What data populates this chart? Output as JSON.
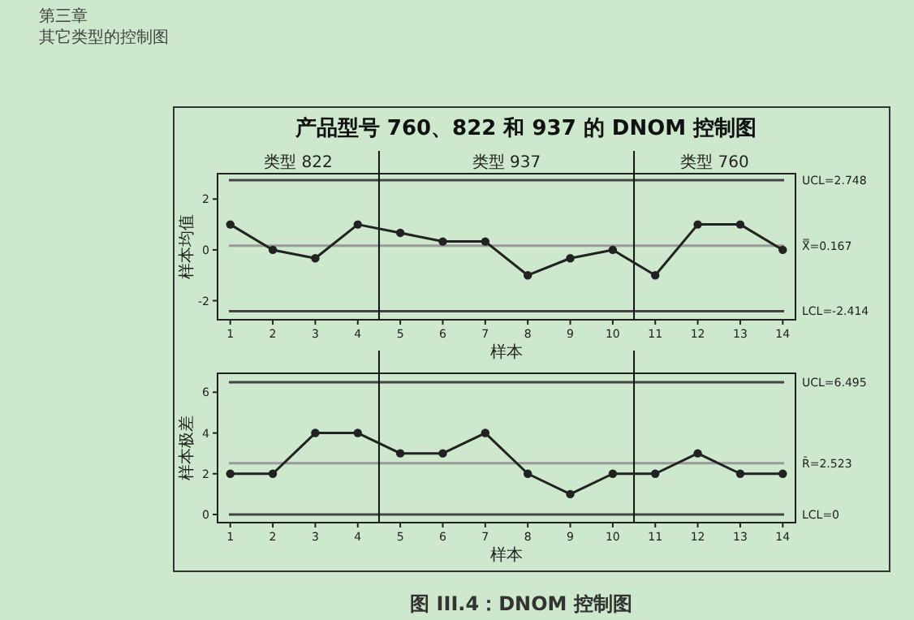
{
  "chart_data": [
    {
      "type": "line",
      "title": "产品型号 760、822 和 937 的 DNOM 控制图",
      "xlabel": "样本",
      "ylabel": "样本均值",
      "x": [
        1,
        2,
        3,
        4,
        5,
        6,
        7,
        8,
        9,
        10,
        11,
        12,
        13,
        14
      ],
      "series": [
        {
          "color": "#222222",
          "values": [
            1,
            0,
            -0.33,
            1,
            0.67,
            0.33,
            0.33,
            -1,
            -0.33,
            0,
            -1,
            1,
            1,
            0
          ]
        }
      ],
      "marker": "circle",
      "line_style": "solid",
      "grid": false,
      "xlim": [
        0.7,
        14.3
      ],
      "xticks": [
        1,
        2,
        3,
        4,
        5,
        6,
        7,
        8,
        9,
        10,
        11,
        12,
        13,
        14
      ],
      "ylim": [
        -2.75,
        3.0
      ],
      "yticks": [
        -2,
        0,
        2
      ],
      "ref_lines": [
        {
          "axis": "y",
          "value": 2.748,
          "label": "UCL=2.748",
          "color": "#444444"
        },
        {
          "axis": "y",
          "value": 0.167,
          "label": "X̿=0.167",
          "color": "#999999"
        },
        {
          "axis": "y",
          "value": -2.414,
          "label": "LCL=-2.414",
          "color": "#444444"
        },
        {
          "axis": "x",
          "value": 4.5,
          "color": "#111111"
        },
        {
          "axis": "x",
          "value": 10.5,
          "color": "#111111"
        }
      ],
      "annotations": [
        "第三章",
        "其它类型的控制图",
        "类型 822",
        "类型 937",
        "类型 760"
      ]
    },
    {
      "type": "line",
      "xlabel": "样本",
      "ylabel": "样本极差",
      "x": [
        1,
        2,
        3,
        4,
        5,
        6,
        7,
        8,
        9,
        10,
        11,
        12,
        13,
        14
      ],
      "series": [
        {
          "color": "#222222",
          "values": [
            2,
            2,
            4,
            4,
            3,
            3,
            4,
            2,
            1,
            2,
            2,
            3,
            2,
            2
          ]
        }
      ],
      "marker": "circle",
      "line_style": "solid",
      "grid": false,
      "xlim": [
        0.7,
        14.3
      ],
      "xticks": [
        1,
        2,
        3,
        4,
        5,
        6,
        7,
        8,
        9,
        10,
        11,
        12,
        13,
        14
      ],
      "ylim": [
        -0.4,
        6.93
      ],
      "yticks": [
        0,
        2,
        4,
        6
      ],
      "ref_lines": [
        {
          "axis": "y",
          "value": 6.495,
          "label": "UCL=6.495",
          "color": "#444444"
        },
        {
          "axis": "y",
          "value": 2.523,
          "label": "R̄=2.523",
          "color": "#999999"
        },
        {
          "axis": "y",
          "value": 0,
          "label": "LCL=0",
          "color": "#444444"
        },
        {
          "axis": "x",
          "value": 4.5,
          "color": "#111111"
        },
        {
          "axis": "x",
          "value": 10.5,
          "color": "#111111"
        }
      ],
      "annotations": [
        "图 III.4：DNOM 控制图"
      ]
    }
  ]
}
